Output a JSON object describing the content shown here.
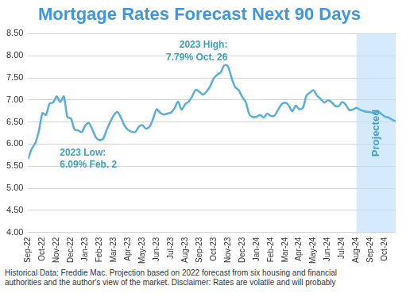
{
  "chart_data": {
    "type": "line",
    "title": "Mortgage Rates Forecast Next 90 Days",
    "categories": [
      "Sep-22",
      null,
      null,
      null,
      "Oct-22",
      null,
      null,
      null,
      "Nov-22",
      null,
      null,
      null,
      "Dec-22",
      null,
      null,
      null,
      "Jan-23",
      null,
      null,
      null,
      "Feb-23",
      null,
      null,
      null,
      "Mar-23",
      null,
      null,
      null,
      "Apr-23",
      null,
      null,
      null,
      "May-23",
      null,
      null,
      null,
      "Jun-23",
      null,
      null,
      null,
      "Jul-23",
      null,
      null,
      null,
      "Aug-23",
      null,
      null,
      null,
      "Sep-23",
      null,
      null,
      null,
      "Oct-23",
      null,
      null,
      null,
      "Nov-23",
      null,
      null,
      null,
      "Dec-23",
      null,
      null,
      null,
      "Jan-24",
      null,
      null,
      null,
      "Feb-24",
      null,
      null,
      null,
      "Mar-24",
      null,
      null,
      null,
      "Apr-24",
      null,
      null,
      null,
      "May-24",
      null,
      null,
      null,
      "Jun-24",
      null,
      null,
      null,
      "Jul-24",
      null,
      null,
      null,
      "Aug-24",
      null,
      null,
      null,
      "Sep-24",
      null,
      null,
      null,
      "Oct-24",
      null,
      null,
      null
    ],
    "values": [
      5.66,
      5.89,
      6.02,
      6.29,
      6.7,
      6.66,
      6.92,
      6.94,
      7.08,
      6.95,
      7.08,
      6.61,
      6.58,
      6.33,
      6.31,
      6.27,
      6.42,
      6.48,
      6.33,
      6.15,
      6.09,
      6.12,
      6.32,
      6.5,
      6.65,
      6.73,
      6.6,
      6.42,
      6.32,
      6.28,
      6.27,
      6.39,
      6.43,
      6.35,
      6.39,
      6.57,
      6.79,
      6.71,
      6.67,
      6.69,
      6.71,
      6.81,
      6.96,
      6.78,
      6.9,
      6.96,
      7.09,
      7.23,
      7.18,
      7.12,
      7.19,
      7.31,
      7.49,
      7.57,
      7.63,
      7.79,
      7.76,
      7.5,
      7.29,
      7.22,
      7.07,
      6.95,
      6.67,
      6.61,
      6.62,
      6.66,
      6.6,
      6.69,
      6.64,
      6.64,
      6.77,
      6.9,
      6.94,
      6.88,
      6.74,
      6.87,
      6.79,
      6.82,
      7.1,
      7.17,
      7.22,
      7.09,
      7.02,
      6.94,
      6.99,
      6.95,
      6.87,
      6.86,
      6.95,
      6.89,
      6.77,
      6.78,
      6.82,
      6.78,
      6.75,
      6.73,
      6.72,
      6.7,
      6.74,
      6.68,
      6.62,
      6.6,
      6.55,
      6.52
    ],
    "color": "#5aaedc",
    "ylim": [
      4,
      8.5
    ],
    "yticks": [
      {
        "value": 4,
        "label": "4.00"
      },
      {
        "value": 4.5,
        "label": "4.50"
      },
      {
        "value": 5,
        "label": "5.00"
      },
      {
        "value": 5.5,
        "label": "5.50"
      },
      {
        "value": 6,
        "label": "6.00"
      },
      {
        "value": 6.5,
        "label": "6.50"
      },
      {
        "value": 7,
        "label": "7.00"
      },
      {
        "value": 7.5,
        "label": "7.50"
      },
      {
        "value": 8,
        "label": "8.00"
      },
      {
        "value": 8.5,
        "label": "8.50"
      }
    ],
    "grid": "y",
    "annotations": [
      {
        "lines": [
          "2023 High:",
          "7.79% Oct. 26"
        ],
        "value": 7.79
      },
      {
        "lines": [
          "2023 Low:",
          "6.09% Feb. 2"
        ],
        "value": 6.09
      }
    ],
    "shaded_region": {
      "from": "Aug-24",
      "label": "Projected"
    },
    "footnote": [
      "Historical Data: Freddie Mac. Projection based on 2022 forecast from six housing and financial",
      "authorities and the author's view of the market. Disclaimer: Rates are volatile and will probably"
    ]
  }
}
